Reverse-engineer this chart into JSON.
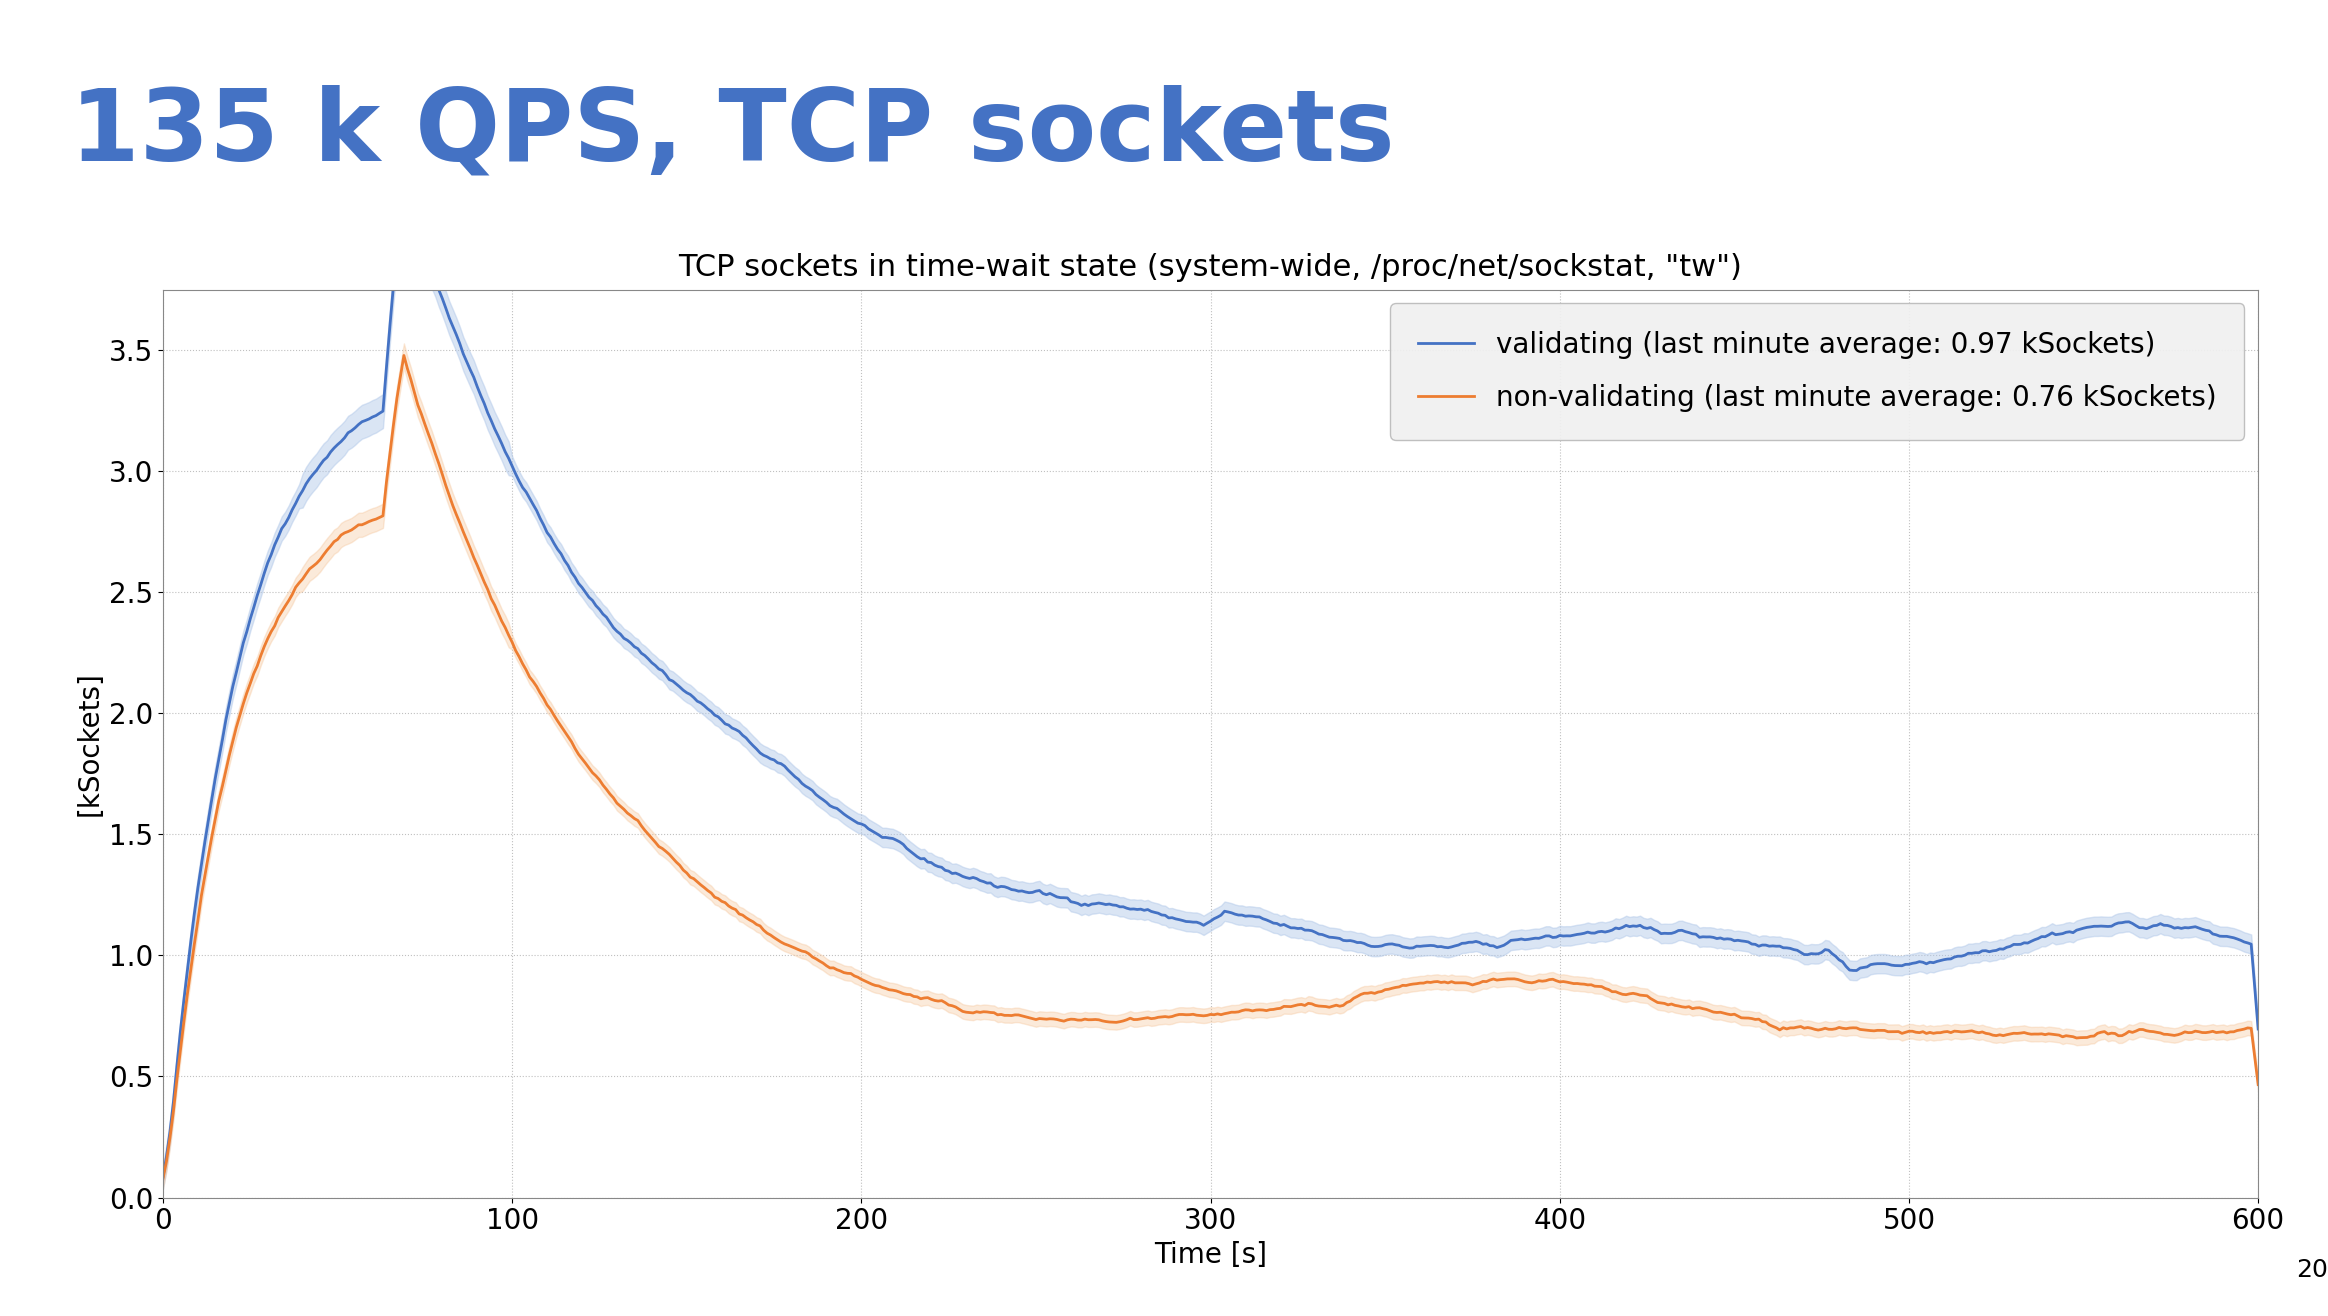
{
  "title_main": "135 k QPS, TCP sockets",
  "title_sub": "TCP sockets in time-wait state (system-wide, /proc/net/sockstat, \"tw\")",
  "xlabel": "Time [s]",
  "ylabel": "[kSockets]",
  "xlim": [
    0,
    600
  ],
  "ylim": [
    0.0,
    3.75
  ],
  "yticks": [
    0.0,
    0.5,
    1.0,
    1.5,
    2.0,
    2.5,
    3.0,
    3.5
  ],
  "xticks": [
    0,
    100,
    200,
    300,
    400,
    500,
    600
  ],
  "legend_validating": "validating (last minute average: 0.97 kSockets)",
  "legend_non_validating": "non-validating (last minute average: 0.76 kSockets)",
  "color_validating": "#4472C4",
  "color_non_validating": "#ED7D31",
  "color_fill_validating": "#AEC6E8",
  "color_fill_non_validating": "#F5C396",
  "background_color": "#ffffff",
  "plot_bg_color": "#ffffff",
  "grid_color": "#c0c0c0",
  "title_main_color": "#4472C4",
  "title_main_fontsize": 72,
  "title_sub_fontsize": 22,
  "axis_label_fontsize": 20,
  "tick_fontsize": 20,
  "legend_fontsize": 20,
  "slide_number": "20",
  "header_bar_color": "#5B8DB8",
  "header_bar_height": 0.038
}
